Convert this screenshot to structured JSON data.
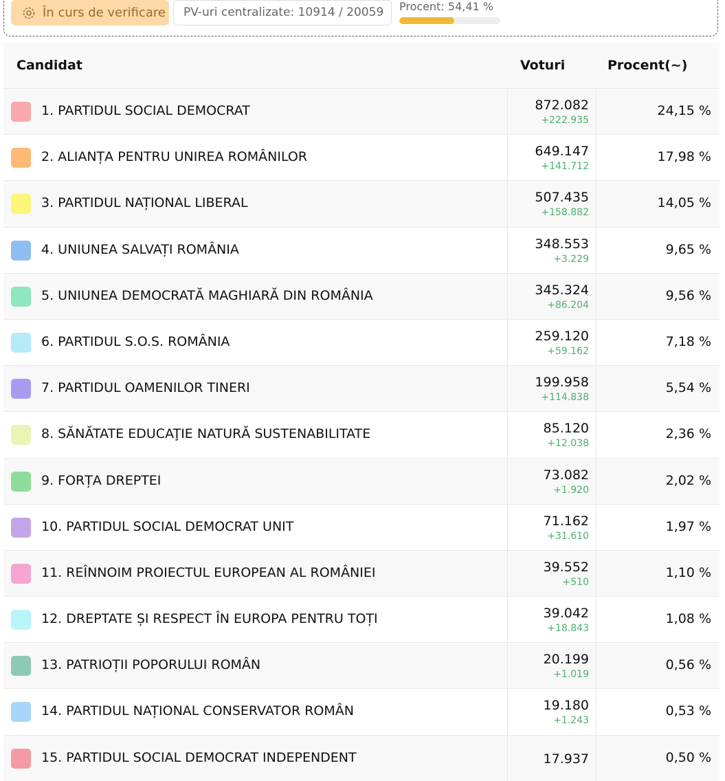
{
  "header": {
    "status": "În curs de verificare",
    "pv_count": "PV-uri centralizate: 10914 / 20059",
    "progress": {
      "label": "Procent: 54,41 %",
      "value": 54.41
    }
  },
  "table": {
    "columns": [
      "Candidat",
      "Voturi",
      "Procent(~)"
    ],
    "rows": [
      {
        "name": "1. PARTIDUL SOCIAL DEMOCRAT",
        "votes": "872.082",
        "delta": "+222.935",
        "percent": "24,15 %",
        "color": "#f9a8ab"
      },
      {
        "name": "2. ALIANȚA PENTRU UNIREA ROMÂNILOR",
        "votes": "649.147",
        "delta": "+141.712",
        "percent": "17,98 %",
        "color": "#fdba74"
      },
      {
        "name": "3. PARTIDUL NAȚIONAL LIBERAL",
        "votes": "507.435",
        "delta": "+158.882",
        "percent": "14,05 %",
        "color": "#fef57a"
      },
      {
        "name": "4. UNIUNEA SALVAȚI ROMÂNIA",
        "votes": "348.553",
        "delta": "+3.229",
        "percent": "9,65 %",
        "color": "#90bdf0"
      },
      {
        "name": "5. UNIUNEA DEMOCRATĂ MAGHIARĂ DIN ROMÂNIA",
        "votes": "345.324",
        "delta": "+86.204",
        "percent": "9,56 %",
        "color": "#8ee6bd"
      },
      {
        "name": "6. PARTIDUL S.O.S. ROMÂNIA",
        "votes": "259.120",
        "delta": "+59.162",
        "percent": "7,18 %",
        "color": "#b5eaf9"
      },
      {
        "name": "7. PARTIDUL OAMENILOR TINERI",
        "votes": "199.958",
        "delta": "+114.838",
        "percent": "5,54 %",
        "color": "#a89cf0"
      },
      {
        "name": "8. SĂNĂTATE EDUCAŢIE NATURĂ SUSTENABILITATE",
        "votes": "85.120",
        "delta": "+12.038",
        "percent": "2,36 %",
        "color": "#e8f5b5"
      },
      {
        "name": "9. FORȚA DREPTEI",
        "votes": "73.082",
        "delta": "+1.920",
        "percent": "2,02 %",
        "color": "#8ddd9a"
      },
      {
        "name": "10. PARTIDUL SOCIAL DEMOCRAT UNIT",
        "votes": "71.162",
        "delta": "+31.610",
        "percent": "1,97 %",
        "color": "#c4a5ea"
      },
      {
        "name": "11. REÎNNOIM PROIECTUL EUROPEAN AL ROMÂNIEI",
        "votes": "39.552",
        "delta": "+510",
        "percent": "1,10 %",
        "color": "#f5a5cf"
      },
      {
        "name": "12. DREPTATE ȘI RESPECT ÎN EUROPA PENTRU TOȚI",
        "votes": "39.042",
        "delta": "+18.843",
        "percent": "1,08 %",
        "color": "#b8f5fb"
      },
      {
        "name": "13. PATRIOȚII POPORULUI ROMÂN",
        "votes": "20.199",
        "delta": "+1.019",
        "percent": "0,56 %",
        "color": "#8ec9b4"
      },
      {
        "name": "14. PARTIDUL NAȚIONAL CONSERVATOR ROMÂN",
        "votes": "19.180",
        "delta": "+1.243",
        "percent": "0,53 %",
        "color": "#a9d4fb"
      },
      {
        "name": "15. PARTIDUL SOCIAL DEMOCRAT INDEPENDENT",
        "votes": "17.937",
        "percent": "0,50 %",
        "color": "#f59aa3"
      }
    ]
  }
}
